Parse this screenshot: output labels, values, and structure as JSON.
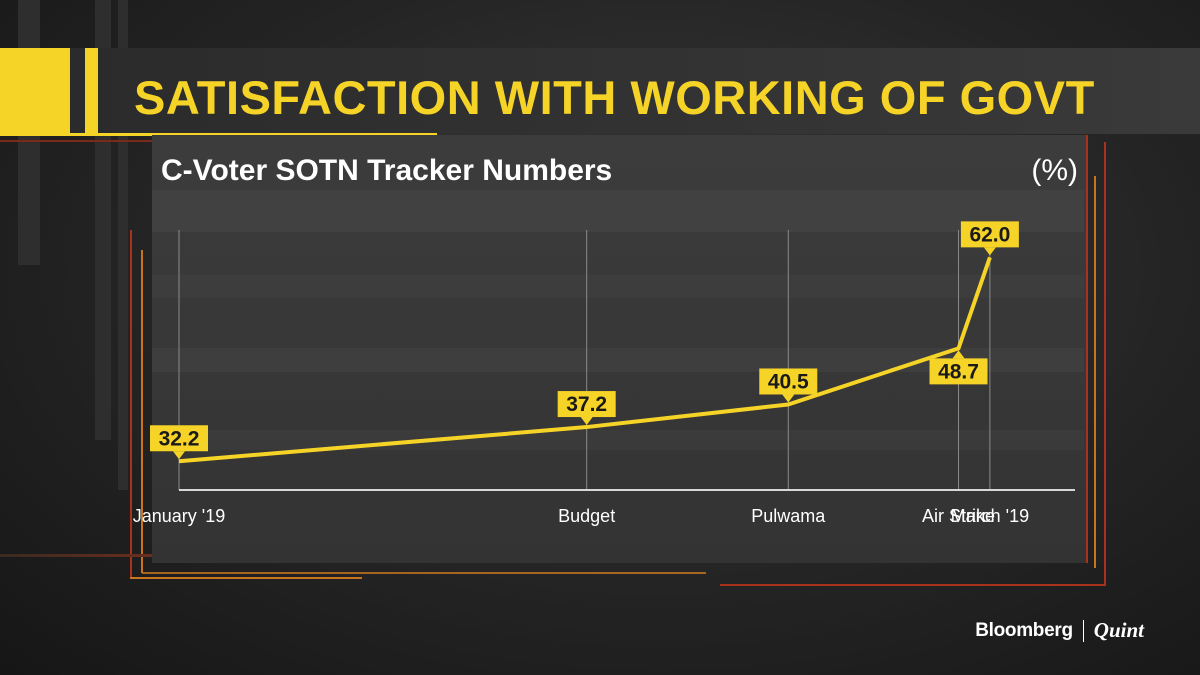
{
  "header": {
    "title": "SATISFACTION WITH WORKING OF GOVT"
  },
  "chart_header": {
    "subtitle": "C-Voter SOTN Tracker Numbers",
    "unit": "(%)"
  },
  "brand": {
    "name_left": "Bloomberg",
    "name_right": "Quint"
  },
  "colors": {
    "accent": "#f5d327",
    "line": "#f5d327",
    "label_bg": "#f5d327",
    "label_text": "#1a1a1a",
    "axis_text": "#ffffff",
    "frame_red": "#a8321c",
    "frame_orange": "#c8751e"
  },
  "chart_data": {
    "type": "line",
    "title": "C-Voter SOTN Tracker Numbers",
    "ylabel": "(%)",
    "xlabel": "",
    "categories": [
      "January '19",
      "Budget",
      "Pulwama",
      "Air Strike",
      "March '19"
    ],
    "values": [
      32.2,
      37.2,
      40.5,
      48.7,
      62.0
    ],
    "value_labels": [
      "32.2",
      "37.2",
      "40.5",
      "48.7",
      "62.0"
    ],
    "x_position": [
      0,
      0.455,
      0.68,
      0.87,
      0.905
    ],
    "ylim": [
      28,
      66
    ],
    "grid": true,
    "legend": "none"
  }
}
